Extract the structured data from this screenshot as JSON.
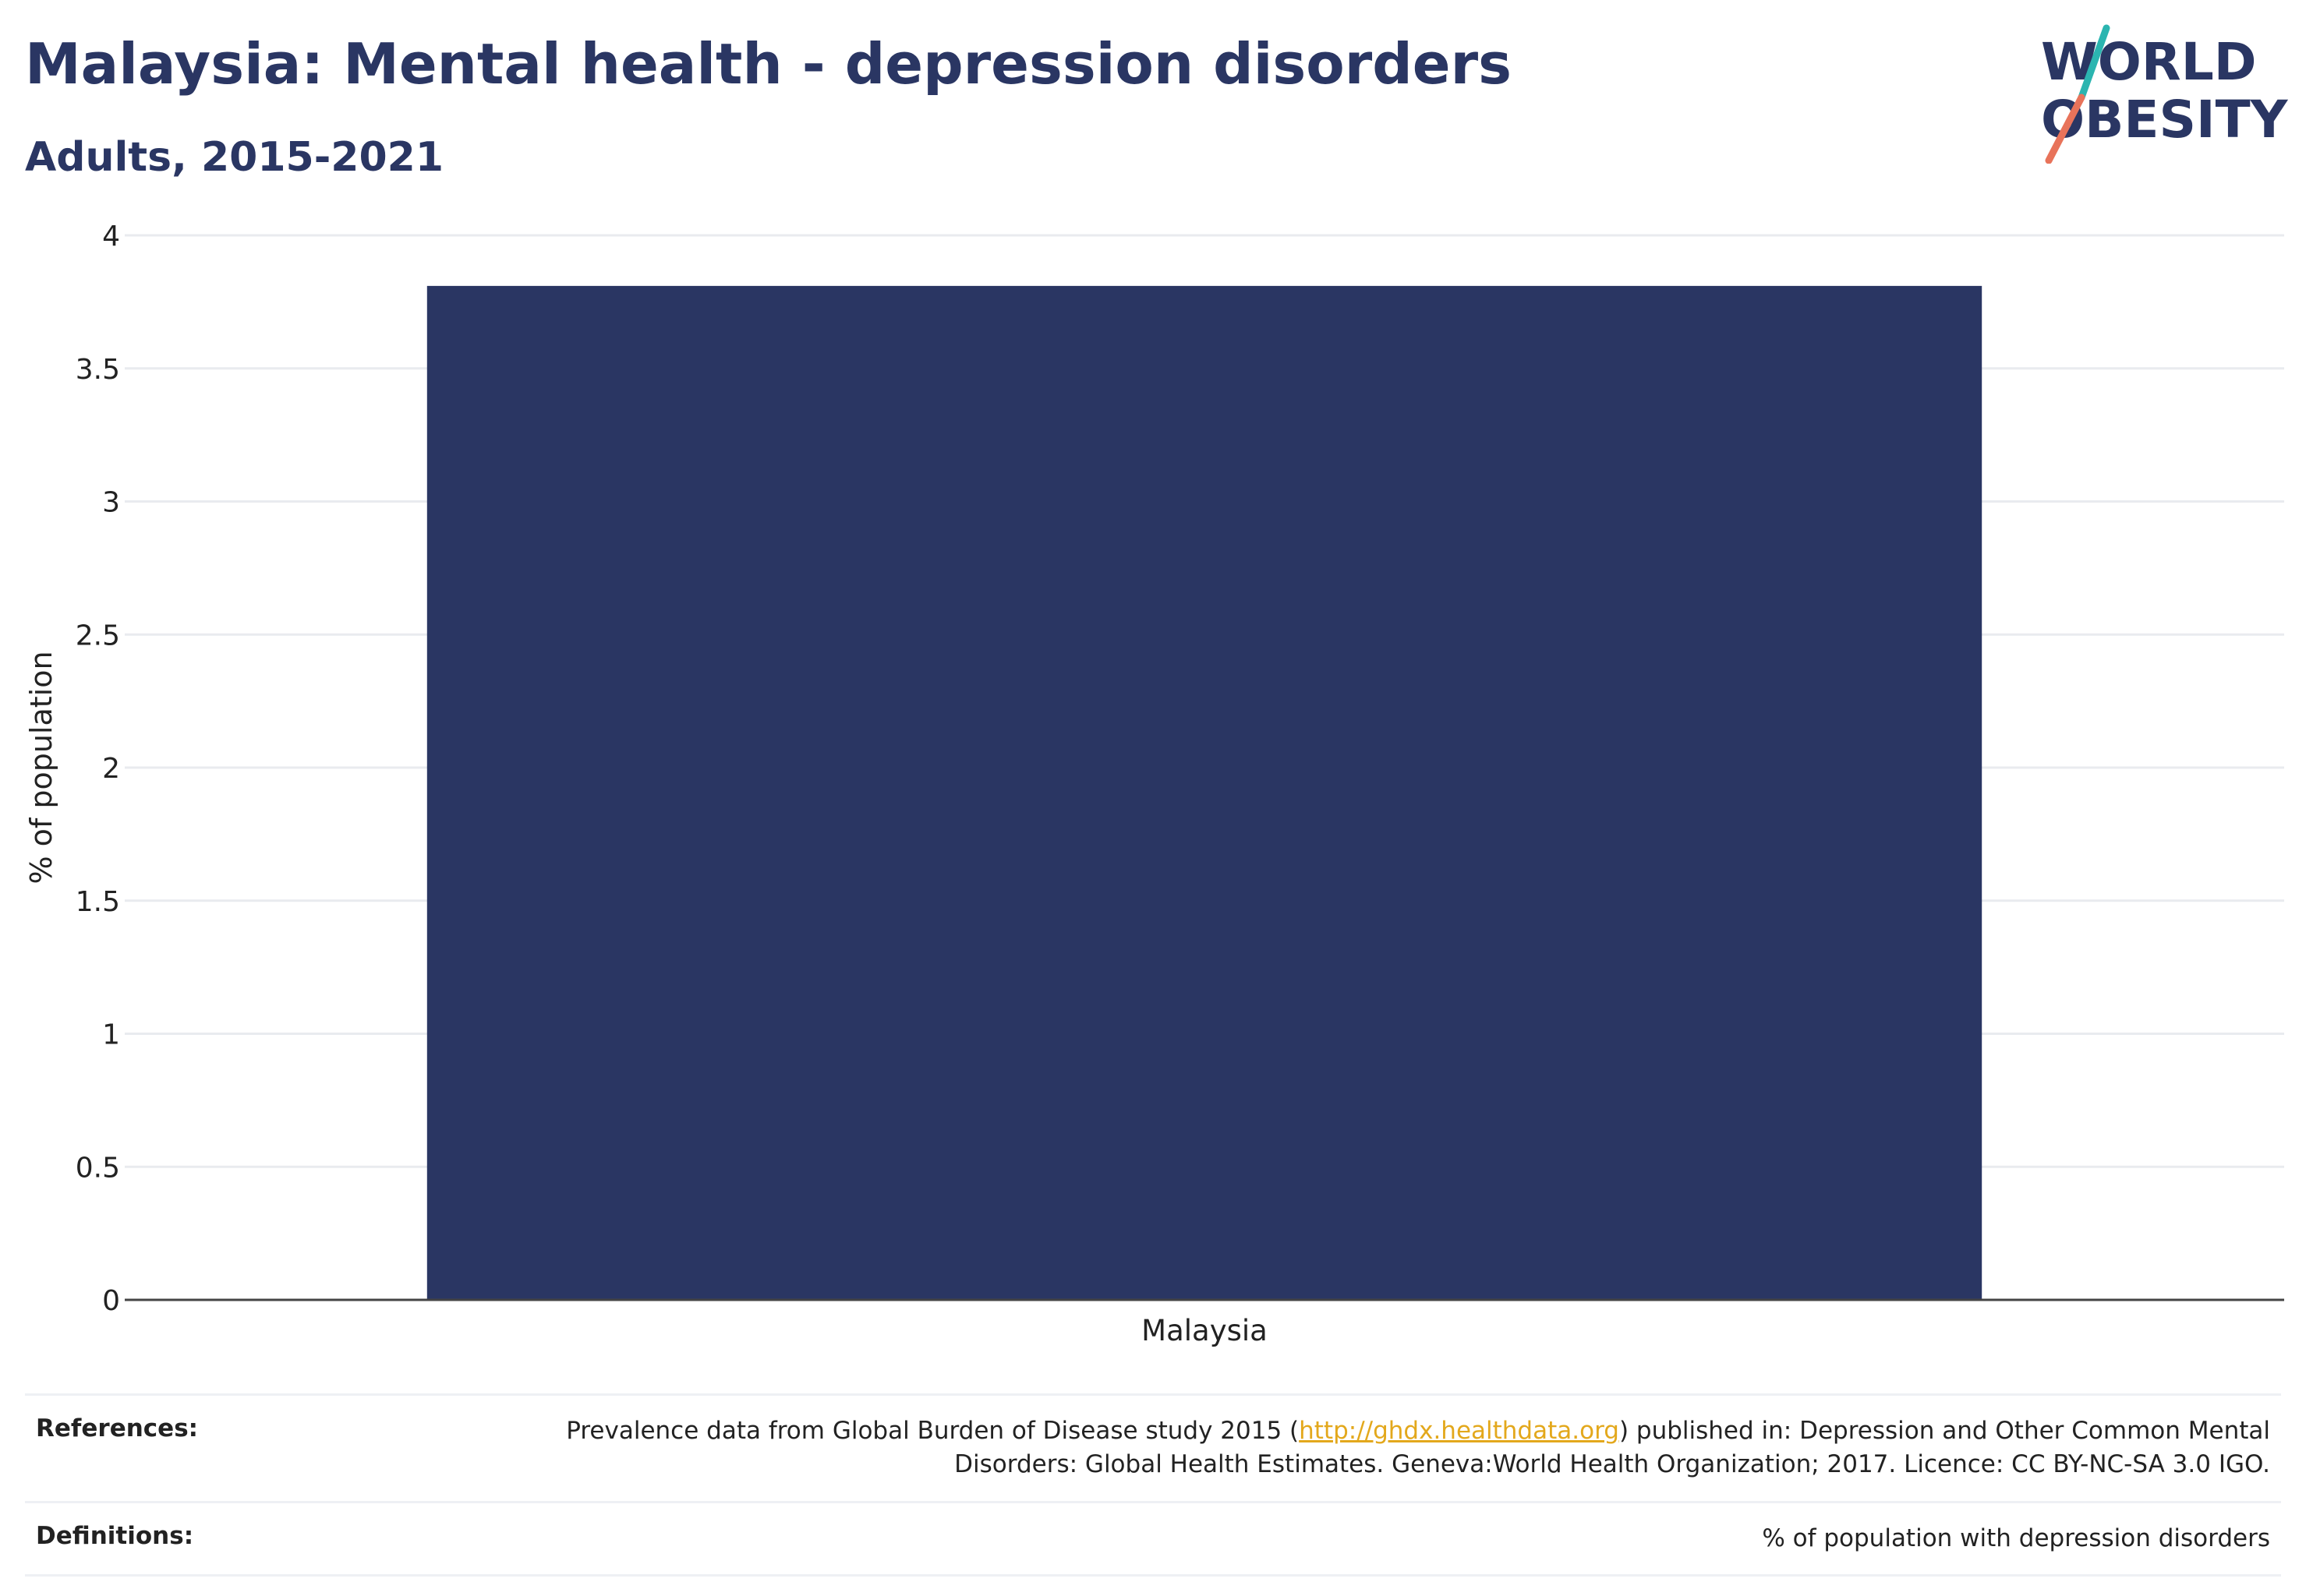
{
  "header": {
    "title": "Malaysia: Mental health - depression disorders",
    "subtitle": "Adults, 2015-2021"
  },
  "logo": {
    "line1": "WORLD",
    "line2": "OBESITY",
    "colors": {
      "text": "#2a3663",
      "slash_top": "#2bb5b0",
      "slash_bottom": "#e8735a"
    }
  },
  "chart_data": {
    "type": "bar",
    "categories": [
      "Malaysia"
    ],
    "values": [
      3.81
    ],
    "title": "Malaysia: Mental health - depression disorders",
    "subtitle": "Adults, 2015-2021",
    "xlabel": "",
    "ylabel": "% of population",
    "ylim": [
      0,
      4
    ],
    "yticks": [
      0,
      0.5,
      1,
      1.5,
      2,
      2.5,
      3,
      3.5,
      4
    ],
    "ytick_labels": [
      "0",
      "0.5",
      "1",
      "1.5",
      "2",
      "2.5",
      "3",
      "3.5",
      "4"
    ],
    "grid": true,
    "legend": "none",
    "bar_color": "#2a3663"
  },
  "footer": {
    "references_label": "References:",
    "references_text_before": "Prevalence data from Global Burden of Disease study 2015 (",
    "references_link": "http://ghdx.healthdata.org",
    "references_text_after": ") published in: Depression and Other Common Mental Disorders: Global Health Estimates. Geneva:World Health Organization; 2017. Licence: CC BY-NC-SA 3.0 IGO.",
    "definitions_label": "Definitions:",
    "definitions_text": "% of population with depression disorders"
  }
}
